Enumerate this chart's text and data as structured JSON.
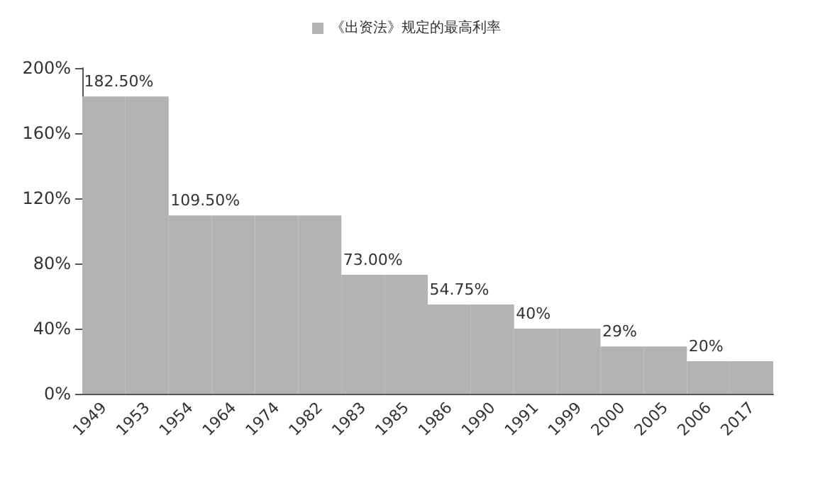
{
  "chart_data": {
    "type": "bar",
    "categories": [
      "1949",
      "1953",
      "1954",
      "1964",
      "1974",
      "1982",
      "1983",
      "1985",
      "1986",
      "1990",
      "1991",
      "1999",
      "2000",
      "2005",
      "2006",
      "2017"
    ],
    "series": [
      {
        "name": "《出资法》规定的最高利率",
        "color": "#b3b3b3",
        "values": [
          182.5,
          182.5,
          109.5,
          109.5,
          109.5,
          109.5,
          73,
          73,
          54.75,
          54.75,
          40,
          40,
          29,
          29,
          20,
          20
        ],
        "value_labels": [
          "182.50%",
          null,
          "109.50%",
          null,
          null,
          null,
          "73.00%",
          null,
          "54.75%",
          null,
          "40%",
          null,
          "29%",
          null,
          "20%",
          null
        ]
      }
    ],
    "ylim": [
      0,
      200
    ],
    "yticks": [
      {
        "value": 0,
        "label": "0%"
      },
      {
        "value": 40,
        "label": "40%"
      },
      {
        "value": 80,
        "label": "80%"
      },
      {
        "value": 120,
        "label": "120%"
      },
      {
        "value": 160,
        "label": "160%"
      },
      {
        "value": 200,
        "label": "200%"
      }
    ],
    "grid": false,
    "legend": "top"
  }
}
